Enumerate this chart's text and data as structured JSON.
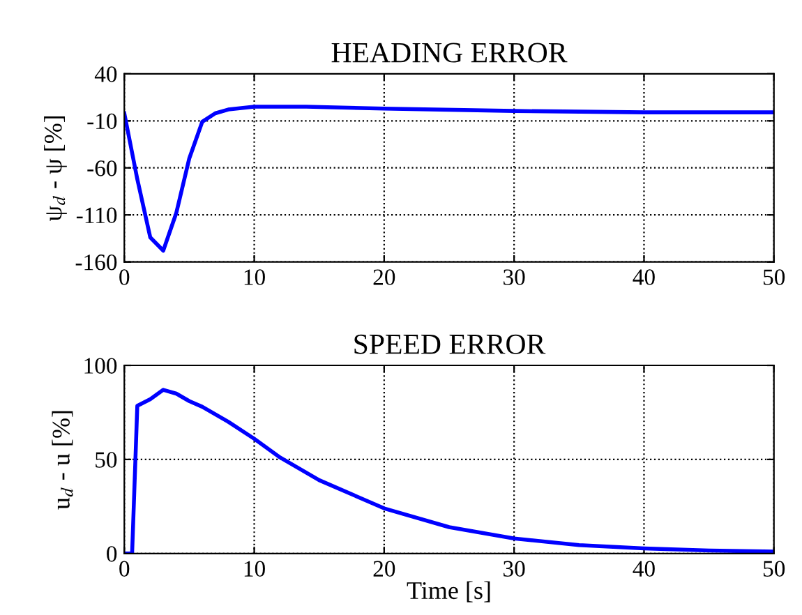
{
  "chart_data": [
    {
      "type": "line",
      "title": "HEADING ERROR",
      "ylabel": "ψ$_{d}$ - ψ [%]",
      "x": [
        0,
        1,
        2,
        3,
        4,
        5,
        6,
        7,
        8,
        10,
        14,
        20,
        30,
        40,
        50
      ],
      "series": [
        {
          "color": "#0000ff",
          "values": [
            -2,
            -72,
            -134,
            -148,
            -108,
            -50,
            -11,
            -2,
            2,
            5,
            5,
            3,
            0.5,
            -1,
            -1
          ]
        }
      ],
      "xlim": [
        0,
        50
      ],
      "xticks": [
        0,
        10,
        20,
        30,
        40,
        50
      ],
      "ylim": [
        -160,
        40
      ],
      "yticks": [
        -160,
        -110,
        -60,
        -10,
        40
      ],
      "grid": true
    },
    {
      "type": "line",
      "title": "SPEED ERROR",
      "xlabel": "Time [s]",
      "ylabel": "u$_{d}$ - u [%]",
      "x": [
        0,
        0.6,
        1,
        2,
        3,
        4,
        5,
        6,
        8,
        10,
        12,
        15,
        20,
        25,
        30,
        35,
        40,
        45,
        50
      ],
      "series": [
        {
          "color": "#0000ff",
          "values": [
            0,
            0,
            78.5,
            82,
            87,
            85,
            81,
            78,
            70,
            61,
            51,
            39,
            24,
            14,
            8,
            4.5,
            2.7,
            1.6,
            1
          ]
        }
      ],
      "xlim": [
        0,
        50
      ],
      "xticks": [
        0,
        10,
        20,
        30,
        40,
        50
      ],
      "ylim": [
        0,
        100
      ],
      "yticks": [
        0,
        50,
        100
      ],
      "grid": true
    }
  ]
}
